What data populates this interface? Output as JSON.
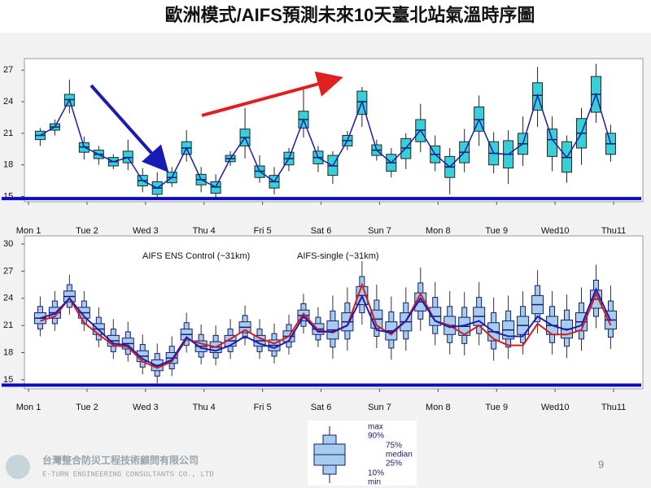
{
  "title": "歐洲模式/AIFS預測未來10天臺北站氣溫時序圖",
  "chart_data": [
    {
      "type": "boxplot",
      "x": [
        0.2,
        0.45,
        0.7,
        0.95,
        1.2,
        1.45,
        1.7,
        1.95,
        2.2,
        2.45,
        2.7,
        2.95,
        3.2,
        3.45,
        3.7,
        3.95,
        4.2,
        4.45,
        4.7,
        4.95,
        5.2,
        5.45,
        5.7,
        5.95,
        6.2,
        6.45,
        6.7,
        6.95,
        7.2,
        7.45,
        7.7,
        7.95,
        8.2,
        8.45,
        8.7,
        8.95,
        9.2,
        9.45,
        9.7,
        9.95
      ],
      "xlim": [
        -0.07,
        10.5
      ],
      "xticks": [
        {
          "value": 0,
          "label": "Mon 1"
        },
        {
          "value": 1,
          "label": "Tue 2"
        },
        {
          "value": 2,
          "label": "Wed 3"
        },
        {
          "value": 3,
          "label": "Thu 4"
        },
        {
          "value": 4,
          "label": "Fri 5"
        },
        {
          "value": 5,
          "label": "Sat 6"
        },
        {
          "value": 6,
          "label": "Sun 7",
          "color": "#e02020"
        },
        {
          "value": 7,
          "label": "Mon 8"
        },
        {
          "value": 8,
          "label": "Tue 9"
        },
        {
          "value": 9,
          "label": "Wed10"
        },
        {
          "value": 10,
          "label": "Thu11"
        }
      ],
      "ylim": [
        14.5,
        28.1
      ],
      "yticks": [
        15,
        18,
        21,
        24,
        27
      ],
      "min": [
        19.8,
        20.8,
        22.9,
        18.5,
        18.0,
        17.6,
        17.5,
        15.4,
        14.7,
        15.9,
        18.3,
        15.4,
        14.9,
        17.9,
        18.6,
        16.3,
        15.2,
        17.4,
        20.6,
        17.3,
        16.2,
        19.4,
        21.6,
        18.4,
        16.8,
        17.6,
        19.2,
        17.4,
        15.2,
        17.3,
        19.8,
        17.2,
        16.2,
        17.9,
        21.6,
        17.4,
        16.3,
        18.0,
        22.0,
        18.3
      ],
      "q1": [
        20.4,
        21.3,
        23.6,
        19.2,
        18.6,
        17.9,
        18.2,
        16.0,
        15.2,
        16.3,
        19.0,
        16.1,
        15.3,
        18.3,
        19.8,
        16.8,
        15.8,
        18.0,
        21.5,
        18.1,
        17.0,
        19.8,
        22.8,
        18.9,
        17.4,
        18.6,
        20.2,
        18.2,
        16.8,
        18.2,
        21.2,
        18.0,
        17.7,
        19.0,
        23.2,
        18.8,
        17.3,
        19.6,
        23.0,
        19.0
      ],
      "median": [
        20.8,
        21.6,
        24.2,
        19.7,
        19.0,
        18.3,
        18.7,
        16.5,
        15.8,
        16.8,
        19.6,
        16.6,
        15.9,
        18.6,
        20.6,
        17.4,
        16.4,
        18.6,
        22.3,
        18.7,
        17.9,
        20.3,
        24.0,
        19.4,
        18.2,
        19.6,
        21.3,
        19.0,
        17.8,
        19.2,
        22.3,
        19.1,
        19.0,
        20.0,
        24.6,
        20.4,
        18.7,
        21.0,
        24.7,
        20.0
      ],
      "q3": [
        21.2,
        21.9,
        24.7,
        20.1,
        19.4,
        18.7,
        19.3,
        17.0,
        16.4,
        17.3,
        20.2,
        17.1,
        16.4,
        18.9,
        21.4,
        17.9,
        17.0,
        19.2,
        23.1,
        19.3,
        18.9,
        20.8,
        25.0,
        19.9,
        19.0,
        20.5,
        22.3,
        19.8,
        18.8,
        20.2,
        23.5,
        20.2,
        20.3,
        21.0,
        25.8,
        21.4,
        20.2,
        22.4,
        26.4,
        21.0
      ],
      "max": [
        21.5,
        22.3,
        26.1,
        20.7,
        19.8,
        19.0,
        20.4,
        17.7,
        17.3,
        17.8,
        21.3,
        17.8,
        17.1,
        19.3,
        23.4,
        18.9,
        17.8,
        19.6,
        25.3,
        19.8,
        19.3,
        21.2,
        25.4,
        20.4,
        19.6,
        21.0,
        23.8,
        20.8,
        19.6,
        21.4,
        24.6,
        21.1,
        21.3,
        22.6,
        27.3,
        22.6,
        20.8,
        23.4,
        27.6,
        21.8
      ],
      "box_color": "#33d2d8",
      "median_line_color": "#1c1ca8",
      "reference_line": 14.8,
      "reference_color": "#0a0ac8"
    },
    {
      "type": "boxplot",
      "x": [
        0.2,
        0.45,
        0.7,
        0.95,
        1.2,
        1.45,
        1.7,
        1.95,
        2.2,
        2.45,
        2.7,
        2.95,
        3.2,
        3.45,
        3.7,
        3.95,
        4.2,
        4.45,
        4.7,
        4.95,
        5.2,
        5.45,
        5.7,
        5.95,
        6.2,
        6.45,
        6.7,
        6.95,
        7.2,
        7.45,
        7.7,
        7.95,
        8.2,
        8.45,
        8.7,
        8.95,
        9.2,
        9.45,
        9.7,
        9.95
      ],
      "xlim": [
        -0.07,
        10.5
      ],
      "xticks": [
        {
          "value": 0,
          "label": "Mon 1"
        },
        {
          "value": 1,
          "label": "Tue 2"
        },
        {
          "value": 2,
          "label": "Wed 3"
        },
        {
          "value": 3,
          "label": "Thu 4"
        },
        {
          "value": 4,
          "label": "Fri 5"
        },
        {
          "value": 5,
          "label": "Sat 6"
        },
        {
          "value": 6,
          "label": "Sun 7",
          "color": "#e02020"
        },
        {
          "value": 7,
          "label": "Mon 8"
        },
        {
          "value": 8,
          "label": "Tue 9"
        },
        {
          "value": 9,
          "label": "Wed10"
        },
        {
          "value": 10,
          "label": "Thu11"
        }
      ],
      "ylim": [
        14.0,
        30.9
      ],
      "yticks": [
        15,
        18,
        21,
        24,
        27,
        30
      ],
      "min": [
        19.8,
        20.4,
        22.2,
        20.4,
        18.6,
        17.3,
        17.0,
        15.6,
        14.6,
        15.4,
        18.0,
        16.7,
        16.6,
        17.3,
        18.8,
        17.3,
        16.8,
        17.8,
        20.1,
        18.6,
        17.3,
        18.2,
        21.1,
        18.5,
        17.2,
        18.2,
        20.4,
        18.8,
        17.8,
        17.7,
        18.8,
        17.1,
        17.3,
        17.8,
        20.1,
        17.8,
        17.4,
        18.2,
        20.7,
        18.4
      ],
      "p10": [
        20.6,
        21.2,
        23.0,
        21.2,
        19.4,
        18.1,
        17.8,
        16.4,
        15.4,
        16.2,
        18.8,
        17.5,
        17.4,
        18.1,
        19.6,
        18.1,
        17.6,
        18.6,
        20.9,
        19.4,
        18.6,
        19.5,
        22.4,
        19.8,
        18.5,
        19.5,
        21.7,
        20.1,
        19.1,
        19.0,
        20.1,
        18.4,
        18.6,
        19.1,
        21.4,
        19.1,
        18.7,
        19.5,
        22.0,
        19.7
      ],
      "p25": [
        21.2,
        21.8,
        23.6,
        21.8,
        20.0,
        18.7,
        18.4,
        17.0,
        16.0,
        16.8,
        19.4,
        18.1,
        18.0,
        18.7,
        20.2,
        18.7,
        18.2,
        19.2,
        21.5,
        20.0,
        19.5,
        20.4,
        23.3,
        20.7,
        19.4,
        20.4,
        22.6,
        21.0,
        20.0,
        19.9,
        21.0,
        19.3,
        19.5,
        20.0,
        22.3,
        20.0,
        19.6,
        20.4,
        22.9,
        20.6
      ],
      "median": [
        21.8,
        22.4,
        24.2,
        22.4,
        20.6,
        19.3,
        19.0,
        17.6,
        16.6,
        17.4,
        20.0,
        18.7,
        18.6,
        19.3,
        20.8,
        19.3,
        18.8,
        19.8,
        22.1,
        20.6,
        20.5,
        21.4,
        24.3,
        21.7,
        20.4,
        21.4,
        23.6,
        22.0,
        21.0,
        20.9,
        22.0,
        20.3,
        20.5,
        21.0,
        23.3,
        21.0,
        20.6,
        21.4,
        23.9,
        21.6
      ],
      "p75": [
        22.4,
        23.0,
        24.8,
        23.0,
        21.2,
        19.9,
        19.6,
        18.2,
        17.2,
        18.0,
        20.6,
        19.3,
        19.2,
        19.9,
        21.4,
        19.9,
        19.4,
        20.4,
        22.7,
        21.2,
        21.5,
        22.4,
        25.3,
        22.7,
        21.4,
        22.4,
        24.6,
        23.0,
        22.0,
        21.9,
        23.0,
        21.3,
        21.5,
        22.0,
        24.3,
        22.0,
        21.6,
        22.4,
        24.9,
        22.6
      ],
      "p90": [
        23.1,
        23.7,
        25.5,
        23.7,
        21.9,
        20.6,
        20.3,
        18.9,
        17.9,
        18.7,
        21.3,
        20.0,
        19.9,
        20.6,
        22.1,
        20.6,
        20.1,
        21.1,
        23.4,
        21.9,
        22.6,
        23.5,
        26.4,
        23.8,
        22.5,
        23.5,
        25.7,
        24.1,
        23.1,
        23.0,
        24.1,
        22.4,
        22.6,
        23.1,
        25.4,
        23.1,
        22.7,
        23.5,
        26.0,
        23.7
      ],
      "max": [
        24.2,
        24.8,
        26.6,
        24.8,
        23.0,
        21.7,
        21.4,
        20.0,
        19.0,
        19.8,
        22.4,
        21.1,
        21.0,
        21.7,
        23.2,
        21.7,
        21.2,
        22.2,
        24.5,
        23.0,
        24.3,
        25.2,
        28.1,
        25.5,
        24.2,
        25.2,
        27.4,
        25.8,
        24.8,
        24.7,
        25.8,
        24.1,
        24.3,
        24.8,
        27.1,
        24.8,
        24.4,
        25.2,
        27.7,
        25.4
      ],
      "box_color": "#a6cdf0",
      "series": [
        {
          "name": "AIFS ENS Control (~31km)",
          "color": "#d41c1c",
          "values": [
            21.5,
            22.0,
            24.0,
            21.3,
            20.0,
            18.8,
            18.6,
            17.0,
            16.3,
            17.0,
            19.5,
            19.0,
            18.6,
            19.5,
            20.5,
            19.6,
            19.0,
            19.8,
            22.3,
            20.5,
            20.2,
            21.0,
            25.5,
            21.0,
            20.0,
            21.5,
            24.5,
            21.5,
            21.0,
            20.0,
            21.0,
            19.5,
            18.8,
            18.8,
            21.2,
            20.0,
            20.0,
            20.5,
            24.5,
            21.0
          ]
        },
        {
          "name": "AIFS-single (~31km)",
          "color": "#1c1cb4",
          "values": [
            21.8,
            22.3,
            24.0,
            22.0,
            20.5,
            19.0,
            18.8,
            17.3,
            16.5,
            17.2,
            19.7,
            18.5,
            18.2,
            18.8,
            19.8,
            19.0,
            18.5,
            19.3,
            22.0,
            20.3,
            20.3,
            21.0,
            24.2,
            20.5,
            20.2,
            21.5,
            24.0,
            21.5,
            20.8,
            21.0,
            21.5,
            20.3,
            19.8,
            19.8,
            22.0,
            21.0,
            20.5,
            21.0,
            25.0,
            21.5
          ]
        }
      ],
      "reference_line": 14.4,
      "reference_color": "#0a0ac8"
    }
  ],
  "legend_key": {
    "max": "max",
    "p90": "90%",
    "p75": "75%",
    "median": "median",
    "p25": "25%",
    "p10": "10%",
    "min": "min"
  },
  "footer": {
    "company": "台灣整合防災工程技術顧問有限公司",
    "company_en": "E-TURN ENGINEERING CONSULTANTS CO., LTD",
    "page": "9"
  }
}
